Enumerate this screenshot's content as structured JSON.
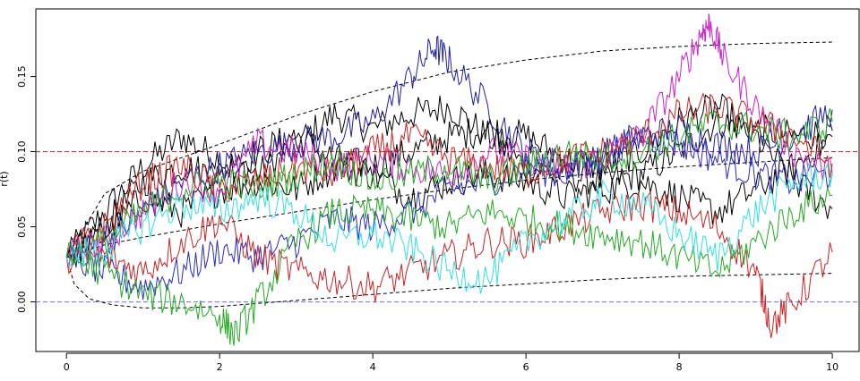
{
  "chart_data": {
    "type": "line",
    "title": "",
    "xlabel": "",
    "ylabel": "r(t)",
    "xlim": [
      -0.4,
      10.35
    ],
    "ylim": [
      -0.033,
      0.195
    ],
    "x_ticks": [
      0,
      2,
      4,
      6,
      8,
      10
    ],
    "y_ticks": [
      0.0,
      0.05,
      0.1,
      0.15
    ],
    "x_tick_labels": [
      "0",
      "2",
      "4",
      "6",
      "8",
      "10"
    ],
    "y_tick_labels": [
      "0.00",
      "0.05",
      "0.10",
      "0.15"
    ],
    "grid": false,
    "legend": "none",
    "horizontal_lines": [
      {
        "y": 0.1,
        "color": "#b22222",
        "style": "dashed"
      },
      {
        "y": 0.0,
        "color": "#6a6aff",
        "style": "dashed"
      }
    ],
    "bounds": [
      {
        "x": [
          0,
          0.5,
          1,
          2,
          3,
          4,
          5,
          6,
          7,
          8,
          9,
          10
        ],
        "y": [
          0.03,
          0.072,
          0.087,
          0.105,
          0.124,
          0.14,
          0.153,
          0.161,
          0.167,
          0.17,
          0.172,
          0.173
        ],
        "color": "#000000",
        "style": "dashed"
      },
      {
        "x": [
          0,
          0.5,
          1,
          2,
          3,
          4,
          5,
          6,
          7,
          8,
          9,
          10
        ],
        "y": [
          0.03,
          0.038,
          0.043,
          0.052,
          0.06,
          0.068,
          0.075,
          0.081,
          0.086,
          0.09,
          0.093,
          0.096
        ],
        "color": "#000000",
        "style": "dashed"
      },
      {
        "x": [
          0,
          0.1,
          0.3,
          0.6,
          1,
          1.5,
          2,
          3,
          4,
          5,
          6,
          7,
          8,
          9,
          10
        ],
        "y": [
          0.03,
          0.012,
          0.002,
          -0.002,
          -0.004,
          -0.004,
          -0.003,
          0.001,
          0.005,
          0.009,
          0.012,
          0.015,
          0.017,
          0.018,
          0.019
        ],
        "color": "#000000",
        "style": "dashed"
      }
    ],
    "series": [
      {
        "color": "#000000",
        "x": [
          0,
          0.5,
          1,
          1.5,
          2,
          2.5,
          3,
          3.5,
          4,
          4.5,
          5,
          5.5,
          6,
          6.5,
          7,
          7.5,
          8,
          8.5,
          9,
          9.5,
          10
        ],
        "y": [
          0.03,
          0.06,
          0.09,
          0.11,
          0.095,
          0.085,
          0.105,
          0.125,
          0.115,
          0.125,
          0.13,
          0.11,
          0.09,
          0.085,
          0.08,
          0.085,
          0.1,
          0.12,
          0.115,
          0.11,
          0.114
        ]
      },
      {
        "color": "#000000",
        "x": [
          0,
          0.5,
          1,
          1.5,
          2,
          2.5,
          3,
          3.5,
          4,
          4.5,
          5,
          5.5,
          6,
          6.5,
          7,
          7.5,
          8,
          8.5,
          9,
          9.5,
          10
        ],
        "y": [
          0.03,
          0.05,
          0.08,
          0.09,
          0.085,
          0.1,
          0.11,
          0.095,
          0.09,
          0.1,
          0.11,
          0.115,
          0.11,
          0.095,
          0.09,
          0.1,
          0.12,
          0.13,
          0.11,
          0.08,
          0.062
        ]
      },
      {
        "color": "#000000",
        "x": [
          0,
          0.5,
          1,
          1.5,
          2,
          2.5,
          3,
          3.5,
          4,
          4.5,
          5,
          5.5,
          6,
          6.5,
          7,
          7.5,
          8,
          8.5,
          9,
          9.5,
          10
        ],
        "y": [
          0.03,
          0.045,
          0.07,
          0.06,
          0.075,
          0.08,
          0.075,
          0.09,
          0.085,
          0.07,
          0.08,
          0.085,
          0.08,
          0.07,
          0.075,
          0.08,
          0.07,
          0.06,
          0.075,
          0.09,
          0.11
        ]
      },
      {
        "color": "#1f1fa6",
        "x": [
          0,
          0.5,
          1,
          1.5,
          2,
          2.5,
          3,
          3.5,
          4,
          4.5,
          4.8,
          5,
          5.5,
          6,
          6.5,
          7,
          7.5,
          8,
          8.5,
          9,
          9.5,
          10
        ],
        "y": [
          0.03,
          0.04,
          0.06,
          0.08,
          0.09,
          0.1,
          0.105,
          0.11,
          0.12,
          0.15,
          0.17,
          0.16,
          0.13,
          0.1,
          0.09,
          0.095,
          0.11,
          0.115,
          0.105,
          0.1,
          0.11,
          0.128
        ]
      },
      {
        "color": "#2a2ac8",
        "x": [
          0,
          0.5,
          1,
          1.5,
          2,
          2.5,
          3,
          3.5,
          4,
          4.5,
          5,
          5.5,
          6,
          6.5,
          7,
          7.5,
          8,
          8.5,
          9,
          9.5,
          10
        ],
        "y": [
          0.03,
          0.02,
          0.01,
          0.02,
          0.035,
          0.03,
          0.04,
          0.055,
          0.05,
          0.06,
          0.075,
          0.08,
          0.09,
          0.085,
          0.1,
          0.11,
          0.105,
          0.095,
          0.085,
          0.08,
          0.085
        ]
      },
      {
        "color": "#cc22cc",
        "x": [
          0,
          0.5,
          1,
          1.5,
          2,
          2.5,
          3,
          3.5,
          4,
          4.5,
          5,
          5.5,
          6,
          6.5,
          7,
          7.5,
          8,
          8.3,
          8.4,
          8.6,
          9,
          9.5,
          10
        ],
        "y": [
          0.03,
          0.04,
          0.06,
          0.08,
          0.075,
          0.105,
          0.1,
          0.09,
          0.095,
          0.09,
          0.085,
          0.1,
          0.095,
          0.09,
          0.095,
          0.11,
          0.15,
          0.18,
          0.185,
          0.16,
          0.13,
          0.1,
          0.085
        ]
      },
      {
        "color": "#cc2222",
        "x": [
          0,
          0.5,
          1,
          1.5,
          2,
          2.5,
          3,
          3.5,
          4,
          4.5,
          5,
          5.5,
          6,
          6.5,
          7,
          7.5,
          8,
          8.5,
          9,
          9.2,
          9.5,
          10
        ],
        "y": [
          0.03,
          0.03,
          0.02,
          0.04,
          0.055,
          0.03,
          0.02,
          0.015,
          0.01,
          0.02,
          0.03,
          0.04,
          0.04,
          0.05,
          0.06,
          0.065,
          0.06,
          0.05,
          0.02,
          -0.015,
          0.0,
          0.033
        ]
      },
      {
        "color": "#cc2222",
        "x": [
          0,
          0.5,
          1,
          1.5,
          2,
          2.5,
          3,
          3.5,
          4,
          4.5,
          5,
          5.5,
          6,
          6.5,
          7,
          7.5,
          8,
          8.5,
          9,
          9.5,
          10
        ],
        "y": [
          0.03,
          0.05,
          0.08,
          0.09,
          0.075,
          0.08,
          0.09,
          0.085,
          0.1,
          0.11,
          0.095,
          0.09,
          0.085,
          0.095,
          0.1,
          0.11,
          0.125,
          0.13,
          0.12,
          0.11,
          0.092
        ]
      },
      {
        "color": "#22aa22",
        "x": [
          0,
          0.5,
          1,
          1.5,
          2,
          2.2,
          2.5,
          3,
          3.5,
          4,
          4.5,
          5,
          5.5,
          6,
          6.5,
          7,
          7.5,
          8,
          8.5,
          9,
          9.5,
          10
        ],
        "y": [
          0.03,
          0.02,
          0.005,
          0.0,
          -0.01,
          -0.022,
          0.0,
          0.04,
          0.06,
          0.06,
          0.055,
          0.05,
          0.06,
          0.055,
          0.05,
          0.045,
          0.04,
          0.03,
          0.02,
          0.04,
          0.06,
          0.071
        ]
      },
      {
        "color": "#22aa22",
        "x": [
          0,
          0.5,
          1,
          1.5,
          2,
          2.5,
          3,
          3.5,
          4,
          4.5,
          5,
          5.5,
          6,
          6.5,
          7,
          7.5,
          8,
          8.5,
          9,
          9.5,
          10
        ],
        "y": [
          0.03,
          0.04,
          0.06,
          0.075,
          0.08,
          0.075,
          0.085,
          0.095,
          0.08,
          0.085,
          0.09,
          0.08,
          0.09,
          0.1,
          0.095,
          0.1,
          0.11,
          0.12,
          0.115,
          0.11,
          0.12
        ]
      },
      {
        "color": "#33e0e0",
        "x": [
          0,
          0.5,
          1,
          1.5,
          2,
          2.5,
          3,
          3.5,
          4,
          4.5,
          5,
          5.5,
          6,
          6.5,
          7,
          7.5,
          8,
          8.5,
          9,
          9.5,
          10
        ],
        "y": [
          0.03,
          0.035,
          0.05,
          0.065,
          0.06,
          0.07,
          0.06,
          0.04,
          0.045,
          0.035,
          0.02,
          0.015,
          0.04,
          0.055,
          0.07,
          0.065,
          0.045,
          0.03,
          0.06,
          0.08,
          0.086
        ]
      }
    ]
  }
}
